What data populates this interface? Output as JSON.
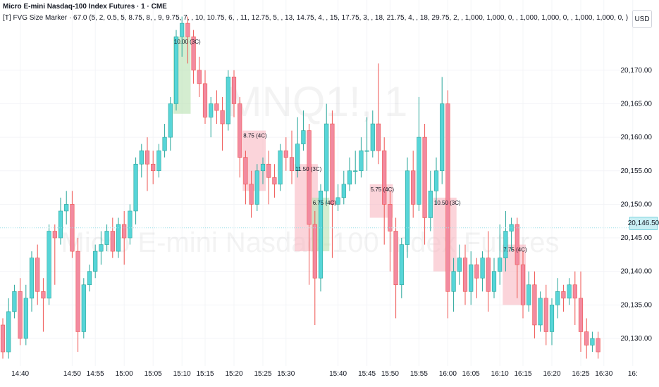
{
  "header": {
    "title": "Micro E-mini Nasdaq-100 Index Futures · 1 · CME",
    "indicator": "[T] FVG Size Marker · 67.0 (5, 2, 0.5, 5, 8.75, 8, , 9, 9.75, 7, , 10, 10.75, 6, , 11, 12.75, 5, , 13, 14.75, 4, , 15, 17.75, 3, , 18, 21.75, 4, , 18, 29.75, 2, , 1,000, 1,000, 0, , 1,000, 1,000, 0, , 1,000, 1,000, 0, )",
    "currency": "USD"
  },
  "watermark": {
    "symbol": "MNQ1!, 1",
    "name": "Micro E-mini Nasdaq-100 Index Futures"
  },
  "colors": {
    "up": "#57d5d8",
    "down": "#f28ba0",
    "up_wick": "#26a69a",
    "down_wick": "#ef5350",
    "bull_fvg": "#b7e1b0",
    "bear_fvg": "#f8b7c2",
    "current_line": "#9fe1e8"
  },
  "chart_data": {
    "type": "candlestick",
    "current_price": 20146.5,
    "current_price_label": "20,146.50",
    "y_ticks": [
      "20,130.00",
      "20,135.00",
      "20,140.00",
      "20,145.00",
      "20,150.00",
      "20,155.00",
      "20,160.00",
      "20,165.00",
      "20,170.00"
    ],
    "y_tick_values": [
      20130,
      20135,
      20140,
      20145,
      20150,
      20155,
      20160,
      20165,
      20170
    ],
    "x_ticks": [
      {
        "label": "14:40",
        "bar": 3
      },
      {
        "label": "14:50",
        "bar": 12
      },
      {
        "label": "14:55",
        "bar": 16
      },
      {
        "label": "15:00",
        "bar": 21
      },
      {
        "label": "15:05",
        "bar": 26
      },
      {
        "label": "15:10",
        "bar": 31
      },
      {
        "label": "15:15",
        "bar": 35
      },
      {
        "label": "15:20",
        "bar": 40
      },
      {
        "label": "15:25",
        "bar": 45
      },
      {
        "label": "15:30",
        "bar": 49
      },
      {
        "label": "15:40",
        "bar": 58
      },
      {
        "label": "15:45",
        "bar": 63
      },
      {
        "label": "15:50",
        "bar": 67
      },
      {
        "label": "15:55",
        "bar": 72
      },
      {
        "label": "16:00",
        "bar": 77
      },
      {
        "label": "16:05",
        "bar": 81
      },
      {
        "label": "16:10",
        "bar": 86
      },
      {
        "label": "16:15",
        "bar": 90
      },
      {
        "label": "16:20",
        "bar": 95
      },
      {
        "label": "16:25",
        "bar": 100
      },
      {
        "label": "16:30",
        "bar": 104
      },
      {
        "label": "16:",
        "bar": 109
      }
    ],
    "candles": [
      [
        20132,
        20128,
        20133,
        20127
      ],
      [
        20128,
        20134,
        20136,
        20127
      ],
      [
        20134,
        20137,
        20138,
        20133
      ],
      [
        20137,
        20130,
        20139,
        20129
      ],
      [
        20130,
        20136,
        20138,
        20129
      ],
      [
        20136,
        20142,
        20143,
        20134
      ],
      [
        20142,
        20137,
        20144,
        20135
      ],
      [
        20137,
        20136,
        20139,
        20131
      ],
      [
        20136,
        20146,
        20147,
        20135
      ],
      [
        20146,
        20145,
        20147,
        20138
      ],
      [
        20145,
        20149,
        20151,
        20144
      ],
      [
        20149,
        20150,
        20152,
        20147
      ],
      [
        20150,
        20143,
        20152,
        20142
      ],
      [
        20143,
        20131,
        20145,
        20128
      ],
      [
        20131,
        20138,
        20139,
        20130
      ],
      [
        20138,
        20140,
        20141,
        20137
      ],
      [
        20140,
        20143,
        20144,
        20139
      ],
      [
        20143,
        20144,
        20146,
        20141
      ],
      [
        20144,
        20146,
        20147,
        20143
      ],
      [
        20146,
        20143,
        20148,
        20142
      ],
      [
        20143,
        20147,
        20148,
        20142
      ],
      [
        20147,
        20145,
        20149,
        20141
      ],
      [
        20145,
        20149,
        20150,
        20144
      ],
      [
        20149,
        20156,
        20157,
        20147
      ],
      [
        20156,
        20158,
        20159,
        20154
      ],
      [
        20158,
        20156,
        20160,
        20152
      ],
      [
        20156,
        20155,
        20158,
        20153
      ],
      [
        20155,
        20158,
        20159,
        20154
      ],
      [
        20158,
        20160,
        20162,
        20157
      ],
      [
        20160,
        20165,
        20166,
        20158
      ],
      [
        20165,
        20175,
        20176,
        20164
      ],
      [
        20175,
        20177,
        20178,
        20172
      ],
      [
        20177,
        20175,
        20178,
        20171
      ],
      [
        20175,
        20170,
        20176,
        20168
      ],
      [
        20170,
        20168,
        20172,
        20166
      ],
      [
        20168,
        20163,
        20170,
        20162
      ],
      [
        20163,
        20165,
        20166,
        20160
      ],
      [
        20165,
        20164,
        20167,
        20162
      ],
      [
        20164,
        20162,
        20166,
        20158
      ],
      [
        20162,
        20169,
        20170,
        20161
      ],
      [
        20169,
        20165,
        20170,
        20163
      ],
      [
        20165,
        20157,
        20166,
        20154
      ],
      [
        20157,
        20153,
        20158,
        20150
      ],
      [
        20153,
        20150,
        20155,
        20148
      ],
      [
        20150,
        20155,
        20156,
        20149
      ],
      [
        20155,
        20156,
        20157,
        20153
      ],
      [
        20156,
        20154,
        20158,
        20150
      ],
      [
        20154,
        20153,
        20156,
        20151
      ],
      [
        20153,
        20158,
        20159,
        20152
      ],
      [
        20158,
        20157,
        20160,
        20155
      ],
      [
        20157,
        20155,
        20161,
        20153
      ],
      [
        20155,
        20159,
        20163,
        20154
      ],
      [
        20159,
        20161,
        20164,
        20158
      ],
      [
        20161,
        20147,
        20162,
        20138
      ],
      [
        20147,
        20139,
        20149,
        20132
      ],
      [
        20139,
        20152,
        20153,
        20137
      ],
      [
        20152,
        20162,
        20165,
        20150
      ],
      [
        20162,
        20150,
        20164,
        20142
      ],
      [
        20150,
        20151,
        20153,
        20149
      ],
      [
        20151,
        20153,
        20155,
        20150
      ],
      [
        20153,
        20155,
        20157,
        20152
      ],
      [
        20155,
        20155,
        20158,
        20153
      ],
      [
        20155,
        20158,
        20160,
        20154
      ],
      [
        20158,
        20158,
        20163,
        20155
      ],
      [
        20158,
        20162,
        20164,
        20157
      ],
      [
        20162,
        20158,
        20171,
        20156
      ],
      [
        20158,
        20150,
        20160,
        20144
      ],
      [
        20150,
        20146,
        20152,
        20140
      ],
      [
        20146,
        20138,
        20148,
        20133
      ],
      [
        20138,
        20144,
        20145,
        20136
      ],
      [
        20144,
        20155,
        20157,
        20142
      ],
      [
        20155,
        20150,
        20158,
        20148
      ],
      [
        20150,
        20160,
        20166,
        20149
      ],
      [
        20160,
        20148,
        20162,
        20144
      ],
      [
        20148,
        20152,
        20155,
        20146
      ],
      [
        20152,
        20155,
        20157,
        20150
      ],
      [
        20155,
        20165,
        20169,
        20153
      ],
      [
        20165,
        20137,
        20167,
        20133
      ],
      [
        20137,
        20140,
        20142,
        20134
      ],
      [
        20140,
        20142,
        20144,
        20138
      ],
      [
        20142,
        20137,
        20144,
        20135
      ],
      [
        20137,
        20141,
        20143,
        20135
      ],
      [
        20141,
        20139,
        20142,
        20136
      ],
      [
        20139,
        20142,
        20143,
        20137
      ],
      [
        20142,
        20137,
        20146,
        20134
      ],
      [
        20137,
        20140,
        20142,
        20136
      ],
      [
        20140,
        20142,
        20147,
        20138
      ],
      [
        20142,
        20146,
        20149,
        20140
      ],
      [
        20146,
        20147,
        20148,
        20143
      ],
      [
        20147,
        20141,
        20148,
        20136
      ],
      [
        20141,
        20135,
        20143,
        20133
      ],
      [
        20135,
        20138,
        20140,
        20134
      ],
      [
        20138,
        20132,
        20140,
        20130
      ],
      [
        20132,
        20136,
        20137,
        20131
      ],
      [
        20136,
        20131,
        20138,
        20129
      ],
      [
        20131,
        20135,
        20136,
        20129
      ],
      [
        20135,
        20137,
        20139,
        20133
      ],
      [
        20137,
        20136,
        20138,
        20134
      ],
      [
        20136,
        20138,
        20139,
        20135
      ],
      [
        20138,
        20136,
        20140,
        20132
      ],
      [
        20136,
        20131,
        20140,
        20128
      ],
      [
        20131,
        20129,
        20133,
        20127
      ],
      [
        20129,
        20130,
        20131,
        20128
      ],
      [
        20130,
        20128,
        20131,
        20127
      ]
    ],
    "fvgs": [
      {
        "type": "bull",
        "start": 30,
        "end": 32,
        "top": 20175,
        "bottom": 20163.5,
        "label": "10.00 (3C)"
      },
      {
        "type": "bear",
        "start": 42,
        "end": 45,
        "top": 20161,
        "bottom": 20152,
        "label": "8.75 (4C)"
      },
      {
        "type": "bear",
        "start": 51,
        "end": 54,
        "top": 20156,
        "bottom": 20143,
        "label": "11.50 (3C)"
      },
      {
        "type": "bull",
        "start": 54,
        "end": 56,
        "top": 20151,
        "bottom": 20143,
        "label": "6.75 (4C)"
      },
      {
        "type": "bear",
        "start": 64,
        "end": 67,
        "top": 20153,
        "bottom": 20148,
        "label": "5.75 (4C)"
      },
      {
        "type": "bear",
        "start": 75,
        "end": 78,
        "top": 20151,
        "bottom": 20140,
        "label": "10.50 (3C)"
      },
      {
        "type": "bear",
        "start": 87,
        "end": 90,
        "top": 20144,
        "bottom": 20135,
        "label": "7.75 (4C)"
      }
    ]
  }
}
